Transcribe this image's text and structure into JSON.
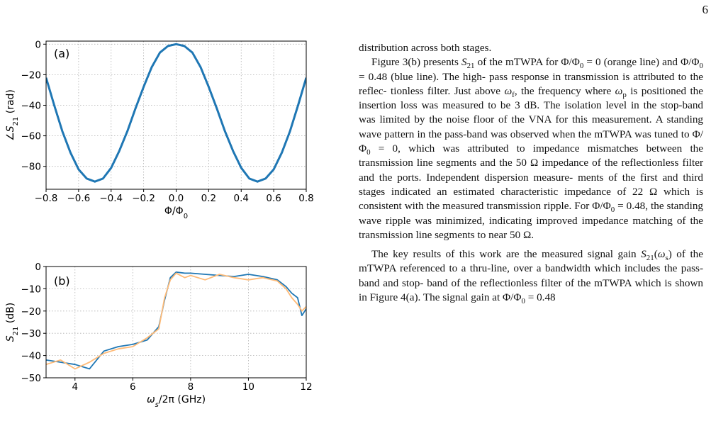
{
  "page": {
    "number": "6",
    "text_lines_p0": [
      "distribution across both stages."
    ],
    "text_lines_p1": [
      "Figure 3(b) presents S21 of the mTWPA for Φ/Φ0 = 0",
      "(orange line) and Φ/Φ0 = 0.48 (blue line). The high-",
      "pass response in transmission is attributed to the reflec-",
      "tionless filter. Just above ωf, the frequency where ωp is",
      "positioned the insertion loss was measured to be 3 dB.",
      "The isolation level in the stop-band was limited by the",
      "noise floor of the VNA for this measurement. A standing",
      "wave pattern in the pass-band was observed when the",
      "mTWPA was tuned to Φ/Φ0 = 0, which was attributed",
      "to impedance mismatches between the transmission line",
      "segments and the 50 Ω impedance of the reflectionless",
      "filter and the ports. Independent dispersion measure-",
      "ments of the first and third stages indicated an estimated",
      "characteristic impedance of 22 Ω which is consistent with",
      "the measured transmission ripple. For Φ/Φ0 = 0.48, the",
      "standing wave ripple was minimized, indicating improved",
      "impedance matching of the transmission line segments to",
      "near 50 Ω."
    ],
    "text_lines_p2": [
      "The key results of this work are the measured signal",
      "gain S21(ωs) of the mTWPA referenced to a thru-line,",
      "over a bandwidth which includes the pass-band and stop-",
      "band of the reflectionless filter of the mTWPA which is",
      "shown in Figure 4(a). The signal gain at Φ/Φ0 = 0.48"
    ]
  },
  "colors": {
    "blue": "#1f77b4",
    "orange": "#ffbb78",
    "grid": "#b0b0b0"
  },
  "chart_data": [
    {
      "type": "line",
      "panel_label": "(a)",
      "xlabel": "Φ/Φ0",
      "ylabel": "∠S21 (rad)",
      "xlim": [
        -0.8,
        0.8
      ],
      "ylim": [
        -95,
        2
      ],
      "xticks": [
        -0.8,
        -0.6,
        -0.4,
        -0.2,
        0.0,
        0.2,
        0.4,
        0.6,
        0.8
      ],
      "xtick_labels": [
        "−0.8",
        "−0.6",
        "−0.4",
        "−0.2",
        "0.0",
        "0.2",
        "0.4",
        "0.6",
        "0.8"
      ],
      "yticks": [
        0,
        -20,
        -40,
        -60,
        -80
      ],
      "ytick_labels": [
        "0",
        "−20",
        "−40",
        "−60",
        "−80"
      ],
      "grid": true,
      "series": [
        {
          "color": "blue",
          "x": [
            -0.8,
            -0.75,
            -0.7,
            -0.65,
            -0.6,
            -0.55,
            -0.5,
            -0.45,
            -0.4,
            -0.35,
            -0.3,
            -0.25,
            -0.2,
            -0.15,
            -0.1,
            -0.05,
            0.0,
            0.05,
            0.1,
            0.15,
            0.2,
            0.25,
            0.3,
            0.35,
            0.4,
            0.45,
            0.5,
            0.55,
            0.6,
            0.65,
            0.7,
            0.75,
            0.8
          ],
          "y": [
            -22,
            -40,
            -57,
            -71,
            -82,
            -88,
            -90,
            -88,
            -81,
            -70,
            -57,
            -42,
            -28,
            -15,
            -5.5,
            -1.2,
            0,
            -1.2,
            -5.5,
            -15,
            -28,
            -42,
            -57,
            -70,
            -81,
            -88,
            -90,
            -88,
            -82,
            -71,
            -57,
            -40,
            -22
          ]
        }
      ]
    },
    {
      "type": "line",
      "panel_label": "(b)",
      "xlabel": "ωs/2π (GHz)",
      "ylabel": "S21 (dB)",
      "xlim": [
        3,
        12
      ],
      "ylim": [
        -50,
        0
      ],
      "xticks": [
        4,
        6,
        8,
        10,
        12
      ],
      "xtick_labels": [
        "4",
        "6",
        "8",
        "10",
        "12"
      ],
      "yticks": [
        0,
        -10,
        -20,
        -30,
        -40,
        -50
      ],
      "ytick_labels": [
        "0",
        "−10",
        "−20",
        "−30",
        "−40",
        "−50"
      ],
      "grid": true,
      "series": [
        {
          "color": "blue",
          "x": [
            3.0,
            3.5,
            4.0,
            4.5,
            5.0,
            5.5,
            6.0,
            6.5,
            6.9,
            7.1,
            7.3,
            7.5,
            7.8,
            8.0,
            8.5,
            9.0,
            9.5,
            10.0,
            10.5,
            11.0,
            11.3,
            11.5,
            11.7,
            11.85,
            12.0
          ],
          "y": [
            -42,
            -43,
            -44,
            -46,
            -38,
            -36,
            -35,
            -33,
            -27,
            -15,
            -5,
            -2.5,
            -3,
            -3,
            -3.5,
            -4,
            -4.5,
            -3.5,
            -4.5,
            -6,
            -9,
            -12,
            -14,
            -22,
            -19
          ]
        },
        {
          "color": "orange",
          "x": [
            3.0,
            3.5,
            4.0,
            4.5,
            5.0,
            5.5,
            6.0,
            6.5,
            6.9,
            7.1,
            7.3,
            7.5,
            7.8,
            8.0,
            8.5,
            9.0,
            9.5,
            10.0,
            10.5,
            11.0,
            11.3,
            11.5,
            11.7,
            11.85,
            12.0
          ],
          "y": [
            -44,
            -42,
            -46,
            -43,
            -39,
            -37,
            -36,
            -32,
            -28,
            -14,
            -6,
            -3,
            -5,
            -4,
            -6,
            -3.5,
            -5,
            -6,
            -5,
            -6.5,
            -10,
            -14,
            -17,
            -20,
            -18
          ]
        }
      ]
    }
  ]
}
